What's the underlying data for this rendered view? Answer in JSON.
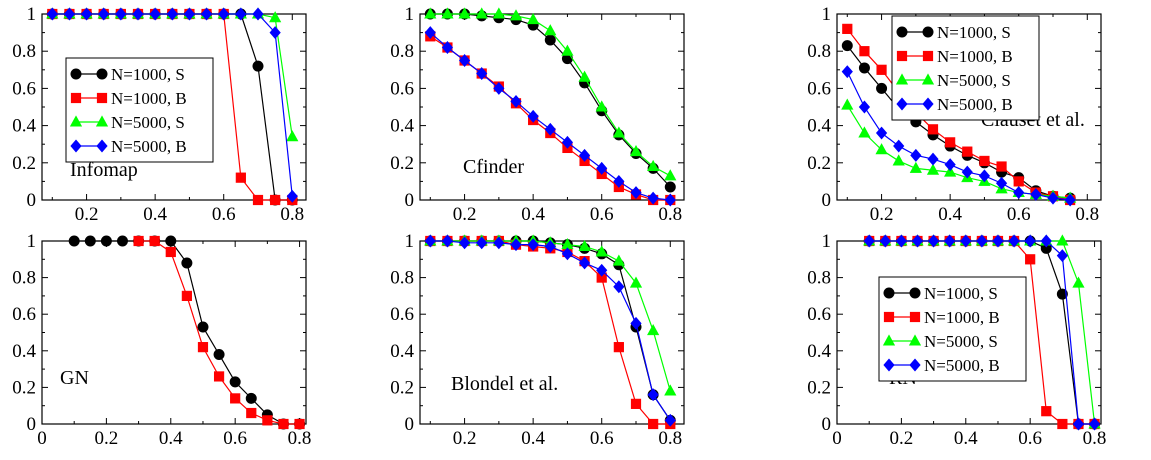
{
  "figure": {
    "series_styles": {
      "S1000": {
        "color": "#000000",
        "marker": "circle"
      },
      "B1000": {
        "color": "#ff0000",
        "marker": "square"
      },
      "S5000": {
        "color": "#00ff00",
        "marker": "triangle"
      },
      "B5000": {
        "color": "#0000ff",
        "marker": "diamond"
      }
    }
  },
  "chart_data": [
    {
      "type": "line",
      "title": "",
      "xlabel": "",
      "ylabel": "",
      "annotation": "Infomap",
      "xlim": [
        0.07,
        0.84
      ],
      "ylim": [
        0,
        1
      ],
      "xticks": [
        "0.2",
        "0.4",
        "0.6",
        "0.8"
      ],
      "yticks": [
        "0",
        "0.2",
        "0.4",
        "0.6",
        "0.8",
        "1"
      ],
      "legend": "middle-left",
      "series": [
        {
          "key": "S1000",
          "name": "N=1000, S",
          "x": [
            0.1,
            0.15,
            0.2,
            0.25,
            0.3,
            0.35,
            0.4,
            0.45,
            0.5,
            0.55,
            0.6,
            0.65,
            0.7,
            0.75,
            0.8
          ],
          "y": [
            1,
            1,
            1,
            1,
            1,
            1,
            1,
            1,
            1,
            1,
            1,
            1,
            0.72,
            0,
            0
          ]
        },
        {
          "key": "B1000",
          "name": "N=1000, B",
          "x": [
            0.1,
            0.15,
            0.2,
            0.25,
            0.3,
            0.35,
            0.4,
            0.45,
            0.5,
            0.55,
            0.6,
            0.65,
            0.7,
            0.75,
            0.8
          ],
          "y": [
            1,
            1,
            1,
            1,
            1,
            1,
            1,
            1,
            1,
            1,
            1,
            0.12,
            0,
            0,
            0
          ]
        },
        {
          "key": "S5000",
          "name": "N=5000, S",
          "x": [
            0.1,
            0.15,
            0.2,
            0.25,
            0.3,
            0.35,
            0.4,
            0.45,
            0.5,
            0.55,
            0.6,
            0.65,
            0.7,
            0.75,
            0.8
          ],
          "y": [
            1,
            1,
            1,
            1,
            1,
            1,
            1,
            1,
            1,
            1,
            1,
            1,
            1,
            0.98,
            0.34
          ]
        },
        {
          "key": "B5000",
          "name": "N=5000, B",
          "x": [
            0.1,
            0.15,
            0.2,
            0.25,
            0.3,
            0.35,
            0.4,
            0.45,
            0.5,
            0.55,
            0.6,
            0.65,
            0.7,
            0.75,
            0.8
          ],
          "y": [
            1,
            1,
            1,
            1,
            1,
            1,
            1,
            1,
            1,
            1,
            1,
            1,
            1,
            0.9,
            0.02
          ]
        }
      ]
    },
    {
      "type": "line",
      "title": "",
      "xlabel": "",
      "ylabel": "",
      "annotation": "Cfinder",
      "xlim": [
        0.07,
        0.84
      ],
      "ylim": [
        0,
        1
      ],
      "xticks": [
        "0.2",
        "0.4",
        "0.6",
        "0.8"
      ],
      "yticks": [
        "0",
        "0.2",
        "0.4",
        "0.6",
        "0.8",
        "1"
      ],
      "legend": "",
      "series": [
        {
          "key": "S1000",
          "x": [
            0.1,
            0.15,
            0.2,
            0.25,
            0.3,
            0.35,
            0.4,
            0.45,
            0.5,
            0.55,
            0.6,
            0.65,
            0.7,
            0.75,
            0.8
          ],
          "y": [
            1,
            1,
            1,
            0.99,
            0.98,
            0.97,
            0.94,
            0.86,
            0.76,
            0.63,
            0.48,
            0.35,
            0.25,
            0.17,
            0.07
          ]
        },
        {
          "key": "B1000",
          "x": [
            0.1,
            0.15,
            0.2,
            0.25,
            0.3,
            0.35,
            0.4,
            0.45,
            0.5,
            0.55,
            0.6,
            0.65,
            0.7,
            0.75,
            0.8
          ],
          "y": [
            0.88,
            0.82,
            0.75,
            0.68,
            0.61,
            0.52,
            0.43,
            0.36,
            0.28,
            0.21,
            0.14,
            0.07,
            0.03,
            0,
            0
          ]
        },
        {
          "key": "S5000",
          "x": [
            0.1,
            0.15,
            0.2,
            0.25,
            0.3,
            0.35,
            0.4,
            0.45,
            0.5,
            0.55,
            0.6,
            0.65,
            0.7,
            0.75,
            0.8
          ],
          "y": [
            1,
            1,
            1,
            1,
            1,
            0.99,
            0.97,
            0.91,
            0.8,
            0.66,
            0.5,
            0.36,
            0.26,
            0.18,
            0.13
          ]
        },
        {
          "key": "B5000",
          "x": [
            0.1,
            0.15,
            0.2,
            0.25,
            0.3,
            0.35,
            0.4,
            0.45,
            0.5,
            0.55,
            0.6,
            0.65,
            0.7,
            0.75,
            0.8
          ],
          "y": [
            0.9,
            0.82,
            0.75,
            0.68,
            0.6,
            0.53,
            0.45,
            0.38,
            0.31,
            0.24,
            0.17,
            0.1,
            0.04,
            0.01,
            0
          ]
        }
      ]
    },
    {
      "type": "line",
      "title": "",
      "xlabel": "",
      "ylabel": "",
      "annotation": "Clauset et al.",
      "xlim": [
        0.07,
        0.84
      ],
      "ylim": [
        0,
        1
      ],
      "xticks": [
        "0.2",
        "0.4",
        "0.6",
        "0.8"
      ],
      "yticks": [
        "0",
        "0.2",
        "0.4",
        "0.6",
        "0.8",
        "1"
      ],
      "legend": "top-right",
      "series": [
        {
          "key": "S1000",
          "name": "N=1000, S",
          "x": [
            0.1,
            0.15,
            0.2,
            0.25,
            0.3,
            0.35,
            0.4,
            0.45,
            0.5,
            0.55,
            0.6,
            0.65,
            0.7,
            0.75
          ],
          "y": [
            0.83,
            0.71,
            0.6,
            0.49,
            0.42,
            0.35,
            0.29,
            0.24,
            0.2,
            0.15,
            0.12,
            0.05,
            0.02,
            0.01
          ]
        },
        {
          "key": "B1000",
          "name": "N=1000, B",
          "x": [
            0.1,
            0.15,
            0.2,
            0.25,
            0.3,
            0.35,
            0.4,
            0.45,
            0.5,
            0.55,
            0.6,
            0.65,
            0.7,
            0.75
          ],
          "y": [
            0.92,
            0.8,
            0.7,
            0.58,
            0.47,
            0.38,
            0.31,
            0.26,
            0.21,
            0.18,
            0.1,
            0.04,
            0.02,
            0
          ]
        },
        {
          "key": "S5000",
          "name": "N=5000, S",
          "x": [
            0.1,
            0.15,
            0.2,
            0.25,
            0.3,
            0.35,
            0.4,
            0.45,
            0.5,
            0.55,
            0.6,
            0.65,
            0.7,
            0.75
          ],
          "y": [
            0.51,
            0.36,
            0.27,
            0.21,
            0.17,
            0.16,
            0.15,
            0.12,
            0.1,
            0.06,
            0.04,
            0.03,
            0.02,
            0.01
          ]
        },
        {
          "key": "B5000",
          "name": "N=5000, B",
          "x": [
            0.1,
            0.15,
            0.2,
            0.25,
            0.3,
            0.35,
            0.4,
            0.45,
            0.5,
            0.55,
            0.6,
            0.65,
            0.7,
            0.75
          ],
          "y": [
            0.69,
            0.5,
            0.36,
            0.29,
            0.24,
            0.22,
            0.19,
            0.15,
            0.13,
            0.09,
            0.04,
            0.03,
            0.01,
            0
          ]
        }
      ]
    },
    {
      "type": "line",
      "title": "",
      "xlabel": "",
      "ylabel": "",
      "annotation": "GN",
      "xlim": [
        0,
        0.82
      ],
      "ylim": [
        0,
        1
      ],
      "xticks": [
        "0",
        "0.2",
        "0.4",
        "0.6",
        "0.8"
      ],
      "yticks": [
        "0",
        "0.2",
        "0.4",
        "0.6",
        "0.8",
        "1"
      ],
      "legend": "",
      "series": [
        {
          "key": "S1000",
          "x": [
            0.1,
            0.15,
            0.2,
            0.25,
            0.3,
            0.35,
            0.4,
            0.45,
            0.5,
            0.55,
            0.6,
            0.65,
            0.7,
            0.75,
            0.8
          ],
          "y": [
            1,
            1,
            1,
            1,
            1,
            1,
            1,
            0.88,
            0.53,
            0.38,
            0.23,
            0.14,
            0.05,
            0,
            0
          ]
        },
        {
          "key": "B1000",
          "x": [
            0.3,
            0.35,
            0.4,
            0.45,
            0.5,
            0.55,
            0.6,
            0.65,
            0.7,
            0.75,
            0.8
          ],
          "y": [
            1,
            1,
            0.94,
            0.7,
            0.42,
            0.26,
            0.14,
            0.06,
            0.02,
            0,
            0
          ]
        }
      ]
    },
    {
      "type": "line",
      "title": "",
      "xlabel": "",
      "ylabel": "",
      "annotation": "Blondel et al.",
      "xlim": [
        0.07,
        0.84
      ],
      "ylim": [
        0,
        1
      ],
      "xticks": [
        "0.2",
        "0.4",
        "0.6",
        "0.8"
      ],
      "yticks": [
        "0",
        "0.2",
        "0.4",
        "0.6",
        "0.8",
        "1"
      ],
      "legend": "",
      "series": [
        {
          "key": "S1000",
          "x": [
            0.1,
            0.15,
            0.2,
            0.25,
            0.3,
            0.35,
            0.4,
            0.45,
            0.5,
            0.55,
            0.6,
            0.65,
            0.7,
            0.75,
            0.8
          ],
          "y": [
            1,
            1,
            1,
            1,
            1,
            1,
            1,
            0.99,
            0.98,
            0.96,
            0.93,
            0.87,
            0.53,
            0.16,
            0.02
          ]
        },
        {
          "key": "B1000",
          "x": [
            0.1,
            0.15,
            0.2,
            0.25,
            0.3,
            0.35,
            0.4,
            0.45,
            0.5,
            0.55,
            0.6,
            0.65,
            0.7,
            0.75,
            0.8
          ],
          "y": [
            1,
            1,
            1,
            1,
            1,
            0.98,
            0.97,
            0.96,
            0.94,
            0.89,
            0.8,
            0.42,
            0.11,
            0,
            0
          ]
        },
        {
          "key": "S5000",
          "x": [
            0.1,
            0.15,
            0.2,
            0.25,
            0.3,
            0.35,
            0.4,
            0.45,
            0.5,
            0.55,
            0.6,
            0.65,
            0.7,
            0.75,
            0.8
          ],
          "y": [
            1,
            1,
            1,
            1,
            1,
            1,
            1,
            0.99,
            0.98,
            0.97,
            0.94,
            0.89,
            0.77,
            0.51,
            0.18
          ]
        },
        {
          "key": "B5000",
          "x": [
            0.1,
            0.15,
            0.2,
            0.25,
            0.3,
            0.35,
            0.4,
            0.45,
            0.5,
            0.55,
            0.6,
            0.65,
            0.7,
            0.75,
            0.8
          ],
          "y": [
            1,
            1,
            0.99,
            0.99,
            0.99,
            0.98,
            0.98,
            0.97,
            0.93,
            0.88,
            0.84,
            0.75,
            0.55,
            0.16,
            0.02
          ]
        }
      ]
    },
    {
      "type": "line",
      "title": "",
      "xlabel": "",
      "ylabel": "",
      "annotation": "RN",
      "xlim": [
        0,
        0.82
      ],
      "ylim": [
        0,
        1
      ],
      "xticks": [
        "0",
        "0.2",
        "0.4",
        "0.6",
        "0.8"
      ],
      "yticks": [
        "0",
        "0.2",
        "0.4",
        "0.6",
        "0.8",
        "1"
      ],
      "legend": "middle-left",
      "series": [
        {
          "key": "S1000",
          "name": "N=1000, S",
          "x": [
            0.1,
            0.15,
            0.2,
            0.25,
            0.3,
            0.35,
            0.4,
            0.45,
            0.5,
            0.55,
            0.6,
            0.65,
            0.7,
            0.75,
            0.8
          ],
          "y": [
            1,
            1,
            1,
            1,
            1,
            1,
            1,
            1,
            1,
            1,
            1,
            0.96,
            0.71,
            0,
            0
          ]
        },
        {
          "key": "B1000",
          "name": "N=1000, B",
          "x": [
            0.1,
            0.15,
            0.2,
            0.25,
            0.3,
            0.35,
            0.4,
            0.45,
            0.5,
            0.55,
            0.6,
            0.65,
            0.7,
            0.75,
            0.8
          ],
          "y": [
            1,
            1,
            1,
            1,
            1,
            1,
            1,
            1,
            1,
            1,
            0.9,
            0.07,
            0,
            0,
            0
          ]
        },
        {
          "key": "S5000",
          "name": "N=5000, S",
          "x": [
            0.1,
            0.15,
            0.2,
            0.25,
            0.3,
            0.35,
            0.4,
            0.45,
            0.5,
            0.55,
            0.6,
            0.65,
            0.7,
            0.75,
            0.8
          ],
          "y": [
            1,
            1,
            1,
            1,
            1,
            1,
            1,
            1,
            1,
            1,
            1,
            1,
            1,
            0.77,
            0
          ]
        },
        {
          "key": "B5000",
          "name": "N=5000, B",
          "x": [
            0.1,
            0.15,
            0.2,
            0.25,
            0.3,
            0.35,
            0.4,
            0.45,
            0.5,
            0.55,
            0.6,
            0.65,
            0.7,
            0.75,
            0.8
          ],
          "y": [
            1,
            1,
            1,
            1,
            1,
            1,
            1,
            1,
            1,
            1,
            1,
            1,
            0.92,
            0,
            0
          ]
        }
      ]
    }
  ]
}
